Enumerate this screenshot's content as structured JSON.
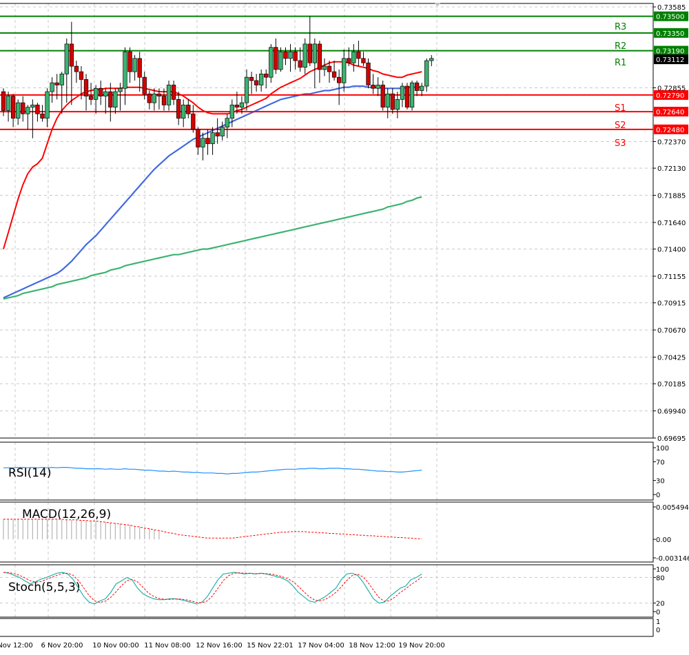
{
  "chart_data": {
    "type": "candlestick",
    "y_ticks": [
      "0.73585",
      "0.72855",
      "0.72370",
      "0.72130",
      "0.71885",
      "0.71640",
      "0.71400",
      "0.71155",
      "0.70915",
      "0.70670",
      "0.70425",
      "0.70185",
      "0.69940",
      "0.69695"
    ],
    "x_ticks": [
      "Nov 12:00",
      "6 Nov 20:00",
      "10 Nov 00:00",
      "11 Nov 08:00",
      "12 Nov 16:00",
      "15 Nov 22:01",
      "17 Nov 04:00",
      "18 Nov 12:00",
      "19 Nov 20:00"
    ],
    "ylim": [
      0.69695,
      0.73585
    ],
    "current_price": "0.73112",
    "levels": [
      {
        "name": "R3",
        "value": 0.735,
        "label": "0.73500",
        "color": "#008000"
      },
      {
        "name": "",
        "value": 0.7335,
        "label": "0.73350",
        "color": "#008000"
      },
      {
        "name": "R2",
        "value": 0.7319,
        "label": "0.73190",
        "color": "#008000"
      },
      {
        "name": "R1",
        "value": 0.73112,
        "label": "",
        "color": "#008000"
      },
      {
        "name": "",
        "value": 0.7279,
        "label": "0.72790",
        "color": "#ff0000"
      },
      {
        "name": "S1",
        "value": 0.7264,
        "label": "0.72640",
        "color": "#ff0000"
      },
      {
        "name": "S2",
        "value": 0.7248,
        "label": "0.72480",
        "color": "#ff0000"
      },
      {
        "name": "S3",
        "value": 0.7239,
        "label": "",
        "color": "#ff0000"
      }
    ],
    "candles": [
      [
        0.7282,
        0.7285,
        0.726,
        0.7265
      ],
      [
        0.7265,
        0.7282,
        0.7255,
        0.7278
      ],
      [
        0.7278,
        0.728,
        0.725,
        0.7258
      ],
      [
        0.7258,
        0.7275,
        0.7252,
        0.7272
      ],
      [
        0.7272,
        0.7278,
        0.7255,
        0.7262
      ],
      [
        0.7262,
        0.727,
        0.7248,
        0.7268
      ],
      [
        0.7268,
        0.7275,
        0.724,
        0.727
      ],
      [
        0.727,
        0.7272,
        0.7255,
        0.7262
      ],
      [
        0.7262,
        0.727,
        0.7255,
        0.7258
      ],
      [
        0.7258,
        0.7285,
        0.725,
        0.7282
      ],
      [
        0.7282,
        0.7295,
        0.7272,
        0.729
      ],
      [
        0.729,
        0.7298,
        0.7275,
        0.7288
      ],
      [
        0.7288,
        0.73,
        0.7262,
        0.7298
      ],
      [
        0.7298,
        0.733,
        0.7272,
        0.7325
      ],
      [
        0.7325,
        0.7345,
        0.727,
        0.7305
      ],
      [
        0.7305,
        0.731,
        0.729,
        0.73
      ],
      [
        0.73,
        0.7305,
        0.7275,
        0.7293
      ],
      [
        0.7293,
        0.7298,
        0.7265,
        0.7278
      ],
      [
        0.7278,
        0.729,
        0.727,
        0.7275
      ],
      [
        0.7275,
        0.7288,
        0.7262,
        0.7285
      ],
      [
        0.7285,
        0.7292,
        0.727,
        0.7278
      ],
      [
        0.7278,
        0.7285,
        0.7262,
        0.7282
      ],
      [
        0.7282,
        0.729,
        0.7255,
        0.7268
      ],
      [
        0.7268,
        0.7285,
        0.7262,
        0.7282
      ],
      [
        0.7282,
        0.729,
        0.7265,
        0.7285
      ],
      [
        0.7285,
        0.7322,
        0.727,
        0.7318
      ],
      [
        0.7318,
        0.7322,
        0.729,
        0.73
      ],
      [
        0.73,
        0.7315,
        0.7292,
        0.7312
      ],
      [
        0.7312,
        0.7318,
        0.7282,
        0.7295
      ],
      [
        0.7295,
        0.73,
        0.7275,
        0.728
      ],
      [
        0.728,
        0.7283,
        0.7266,
        0.7272
      ],
      [
        0.7272,
        0.7285,
        0.7265,
        0.728
      ],
      [
        0.728,
        0.7285,
        0.7266,
        0.7278
      ],
      [
        0.7278,
        0.7285,
        0.7265,
        0.727
      ],
      [
        0.727,
        0.7292,
        0.7265,
        0.7288
      ],
      [
        0.7288,
        0.7292,
        0.727,
        0.7275
      ],
      [
        0.7275,
        0.7282,
        0.7252,
        0.7258
      ],
      [
        0.7258,
        0.7275,
        0.725,
        0.727
      ],
      [
        0.727,
        0.7275,
        0.7258,
        0.7262
      ],
      [
        0.7262,
        0.727,
        0.7245,
        0.7248
      ],
      [
        0.7248,
        0.725,
        0.7225,
        0.7232
      ],
      [
        0.7232,
        0.7245,
        0.722,
        0.724
      ],
      [
        0.724,
        0.7248,
        0.7225,
        0.7235
      ],
      [
        0.7235,
        0.725,
        0.7225,
        0.7245
      ],
      [
        0.7245,
        0.7258,
        0.7235,
        0.7242
      ],
      [
        0.7242,
        0.7255,
        0.7238,
        0.725
      ],
      [
        0.725,
        0.7262,
        0.724,
        0.7258
      ],
      [
        0.7258,
        0.7275,
        0.725,
        0.727
      ],
      [
        0.727,
        0.7282,
        0.7262,
        0.7268
      ],
      [
        0.7268,
        0.7278,
        0.7262,
        0.7272
      ],
      [
        0.7272,
        0.7302,
        0.7265,
        0.7295
      ],
      [
        0.7295,
        0.73,
        0.728,
        0.7292
      ],
      [
        0.7292,
        0.7298,
        0.7282,
        0.7288
      ],
      [
        0.7288,
        0.7302,
        0.7282,
        0.7298
      ],
      [
        0.7298,
        0.7302,
        0.7285,
        0.7295
      ],
      [
        0.7295,
        0.7325,
        0.729,
        0.7322
      ],
      [
        0.7322,
        0.733,
        0.7298,
        0.7302
      ],
      [
        0.7302,
        0.7322,
        0.73,
        0.7318
      ],
      [
        0.7318,
        0.7322,
        0.7306,
        0.7312
      ],
      [
        0.7312,
        0.7325,
        0.73,
        0.7318
      ],
      [
        0.7318,
        0.7322,
        0.7302,
        0.731
      ],
      [
        0.731,
        0.7322,
        0.73,
        0.7304
      ],
      [
        0.7304,
        0.733,
        0.7298,
        0.7325
      ],
      [
        0.7325,
        0.735,
        0.7305,
        0.7308
      ],
      [
        0.7308,
        0.733,
        0.7285,
        0.7325
      ],
      [
        0.7325,
        0.7328,
        0.729,
        0.7302
      ],
      [
        0.7302,
        0.7312,
        0.7296,
        0.7305
      ],
      [
        0.7305,
        0.731,
        0.729,
        0.73
      ],
      [
        0.73,
        0.731,
        0.7292,
        0.7295
      ],
      [
        0.7295,
        0.7302,
        0.727,
        0.729
      ],
      [
        0.729,
        0.732,
        0.7282,
        0.7312
      ],
      [
        0.7312,
        0.7322,
        0.7305,
        0.7308
      ],
      [
        0.7308,
        0.7325,
        0.73,
        0.7318
      ],
      [
        0.7318,
        0.7328,
        0.7305,
        0.7312
      ],
      [
        0.7312,
        0.7318,
        0.7305,
        0.7308
      ],
      [
        0.7308,
        0.7312,
        0.7285,
        0.7288
      ],
      [
        0.7288,
        0.7298,
        0.728,
        0.7285
      ],
      [
        0.7285,
        0.7295,
        0.7278,
        0.7288
      ],
      [
        0.7288,
        0.7292,
        0.7265,
        0.7268
      ],
      [
        0.7268,
        0.7285,
        0.7258,
        0.728
      ],
      [
        0.728,
        0.7285,
        0.7262,
        0.7266
      ],
      [
        0.7266,
        0.7282,
        0.7258,
        0.7275
      ],
      [
        0.7275,
        0.729,
        0.7268,
        0.7287
      ],
      [
        0.7287,
        0.729,
        0.7266,
        0.7268
      ],
      [
        0.7268,
        0.7292,
        0.7265,
        0.729
      ],
      [
        0.729,
        0.7292,
        0.7278,
        0.7283
      ],
      [
        0.7283,
        0.729,
        0.7278,
        0.7287
      ],
      [
        0.7287,
        0.7312,
        0.7282,
        0.731
      ],
      [
        0.731,
        0.7315,
        0.7305,
        0.7312
      ]
    ],
    "ma_red": [
      0.714,
      0.7155,
      0.717,
      0.7185,
      0.7198,
      0.7208,
      0.7214,
      0.7217,
      0.7222,
      0.7235,
      0.7248,
      0.7258,
      0.7265,
      0.727,
      0.7274,
      0.7277,
      0.728,
      0.7282,
      0.7283,
      0.7284,
      0.7284,
      0.7285,
      0.7285,
      0.7285,
      0.7285,
      0.7286,
      0.7286,
      0.7286,
      0.7286,
      0.7285,
      0.7284,
      0.7283,
      0.7282,
      0.7282,
      0.7282,
      0.7282,
      0.728,
      0.7278,
      0.7275,
      0.7272,
      0.7268,
      0.7265,
      0.7263,
      0.7262,
      0.7262,
      0.7262,
      0.7262,
      0.7263,
      0.7265,
      0.7266,
      0.7268,
      0.727,
      0.7272,
      0.7274,
      0.7276,
      0.728,
      0.7283,
      0.7286,
      0.7288,
      0.729,
      0.7292,
      0.7294,
      0.7297,
      0.73,
      0.7302,
      0.7304,
      0.7306,
      0.7308,
      0.7309,
      0.7309,
      0.7309,
      0.7308,
      0.7306,
      0.7305,
      0.7304,
      0.7303,
      0.7301,
      0.73,
      0.7298,
      0.7297,
      0.7296,
      0.7295,
      0.7295,
      0.7297,
      0.7298,
      0.7299,
      0.73
    ],
    "ma_blue": [
      0.7096,
      0.7098,
      0.71,
      0.7102,
      0.7104,
      0.7106,
      0.7108,
      0.711,
      0.7112,
      0.7114,
      0.7116,
      0.7118,
      0.7121,
      0.7125,
      0.7129,
      0.7134,
      0.7139,
      0.7144,
      0.7148,
      0.7152,
      0.7157,
      0.7162,
      0.7167,
      0.7172,
      0.7177,
      0.7182,
      0.7187,
      0.7192,
      0.7197,
      0.7202,
      0.7207,
      0.7212,
      0.7216,
      0.722,
      0.7224,
      0.7227,
      0.723,
      0.7233,
      0.7236,
      0.7239,
      0.7241,
      0.7243,
      0.7245,
      0.7247,
      0.7249,
      0.7251,
      0.7253,
      0.7255,
      0.7257,
      0.7259,
      0.7261,
      0.7263,
      0.7265,
      0.7267,
      0.7269,
      0.7271,
      0.7273,
      0.7275,
      0.7276,
      0.7277,
      0.7278,
      0.7279,
      0.728,
      0.728,
      0.7281,
      0.7282,
      0.7283,
      0.7283,
      0.7284,
      0.7285,
      0.7286,
      0.7286,
      0.7287,
      0.7287,
      0.7287,
      0.7286,
      0.7286,
      0.7286,
      0.7285,
      0.7285,
      0.7285,
      0.7285,
      0.7285,
      0.7286,
      0.7286,
      0.7286,
      0.7286
    ],
    "ma_green": [
      0.7095,
      0.7096,
      0.7097,
      0.7098,
      0.71,
      0.7101,
      0.7102,
      0.7103,
      0.7104,
      0.7105,
      0.7106,
      0.7108,
      0.7109,
      0.711,
      0.7111,
      0.7112,
      0.7113,
      0.7114,
      0.7116,
      0.7117,
      0.7118,
      0.7119,
      0.7121,
      0.7122,
      0.7123,
      0.7125,
      0.7126,
      0.7127,
      0.7128,
      0.7129,
      0.713,
      0.7131,
      0.7132,
      0.7133,
      0.7134,
      0.7135,
      0.7135,
      0.7136,
      0.7137,
      0.7138,
      0.7139,
      0.714,
      0.714,
      0.7141,
      0.7142,
      0.7143,
      0.7144,
      0.7145,
      0.7146,
      0.7147,
      0.7148,
      0.7149,
      0.715,
      0.7151,
      0.7152,
      0.7153,
      0.7154,
      0.7155,
      0.7156,
      0.7157,
      0.7158,
      0.7159,
      0.716,
      0.7161,
      0.7162,
      0.7163,
      0.7164,
      0.7165,
      0.7166,
      0.7167,
      0.7168,
      0.7169,
      0.717,
      0.7171,
      0.7172,
      0.7173,
      0.7174,
      0.7175,
      0.7176,
      0.7178,
      0.7179,
      0.718,
      0.7181,
      0.7183,
      0.7184,
      0.7186,
      0.7187
    ],
    "rsi": {
      "label": "RSI(14)",
      "ticks": [
        "100",
        "70",
        "30",
        "0"
      ],
      "values": [
        57,
        57,
        57,
        58,
        58,
        57,
        58,
        57,
        58,
        57,
        58,
        57,
        58,
        58,
        57,
        56,
        56,
        55,
        55,
        55,
        55,
        54,
        55,
        54,
        54,
        55,
        54,
        54,
        53,
        52,
        52,
        51,
        50,
        50,
        49,
        50,
        49,
        48,
        48,
        47,
        47,
        46,
        46,
        46,
        45,
        45,
        44,
        45,
        45,
        46,
        47,
        48,
        48,
        49,
        50,
        51,
        52,
        53,
        54,
        54,
        54,
        55,
        55,
        56,
        56,
        55,
        55,
        56,
        56,
        56,
        55,
        55,
        54,
        54,
        53,
        52,
        51,
        50,
        50,
        49,
        49,
        48,
        48,
        49,
        50,
        51,
        52
      ]
    },
    "macd": {
      "label": "MACD(12,26,9)",
      "ticks": [
        "0.005494",
        "0.00",
        "-0.003146"
      ],
      "hist": [
        0.0034,
        0.0034,
        0.0034,
        0.0034,
        0.0034,
        0.0034,
        0.0034,
        0.0034,
        0.0034,
        0.0034,
        0.0034,
        0.0034,
        0.0034,
        0.0033,
        0.0033,
        0.0033,
        0.0032,
        0.0032,
        0.0031,
        0.0031,
        0.003,
        0.0029,
        0.0028,
        0.0027,
        0.0026,
        0.0025,
        0.0024,
        0.0022,
        0.0021,
        0.0019,
        0.0018,
        0.0016,
        0.0015,
        0.0013,
        0.0011,
        0.001,
        0.0008,
        0.0007,
        0.0006,
        0.0005,
        0.0004,
        0.0003,
        0.0002,
        0.0002,
        0.0002,
        0.0002,
        0.0002,
        0.0002,
        0.0003,
        0.0004,
        0.0005,
        0.0006,
        0.0007,
        0.0008,
        0.0009,
        0.001,
        0.0011,
        0.0012,
        0.0012,
        0.0013,
        0.0013,
        0.0013,
        0.0013,
        0.0012,
        0.0012,
        0.0011,
        0.0011,
        0.001,
        0.001,
        0.0009,
        0.0009,
        0.0008,
        0.0008,
        0.0007,
        0.0007,
        0.0006,
        0.0006,
        0.0005,
        0.0005,
        0.0004,
        0.0004,
        0.0003,
        0.0003,
        0.0002,
        0.0002,
        0.0001,
        0.0001
      ]
    },
    "stoch": {
      "label": "Stoch(5,5,3)",
      "ticks": [
        "100",
        "80",
        "20",
        "0"
      ],
      "main": [
        92,
        90,
        85,
        80,
        72,
        65,
        70,
        76,
        80,
        85,
        90,
        92,
        88,
        75,
        55,
        35,
        22,
        18,
        25,
        30,
        45,
        65,
        72,
        80,
        74,
        55,
        42,
        35,
        30,
        28,
        28,
        30,
        30,
        28,
        25,
        22,
        18,
        22,
        35,
        55,
        75,
        88,
        90,
        92,
        90,
        88,
        90,
        88,
        90,
        88,
        85,
        82,
        78,
        72,
        60,
        45,
        35,
        25,
        22,
        28,
        35,
        45,
        55,
        75,
        88,
        90,
        85,
        70,
        50,
        30,
        20,
        22,
        35,
        45,
        55,
        60,
        75,
        80,
        88
      ]
    }
  }
}
